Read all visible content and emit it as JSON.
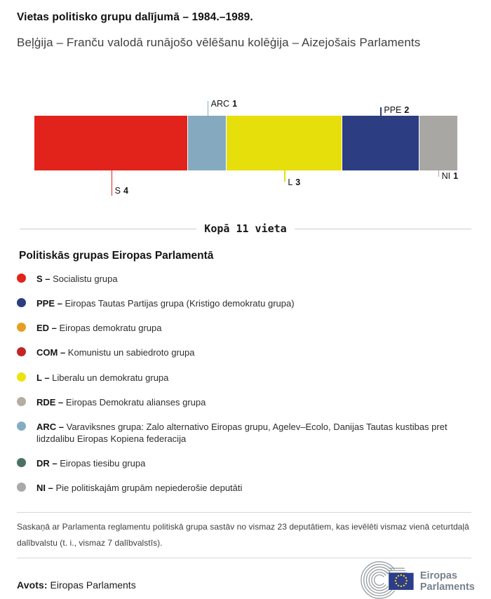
{
  "header": {
    "title": "Vietas politisko grupu dalījumā – 1984.–1989.",
    "subtitle": "Beļģija – Franču valodā runājošo vēlēšanu kolēģija – Aizejošais Parlaments"
  },
  "chart_data": {
    "type": "bar",
    "variant": "horizontal-stacked-seat-bar",
    "title": "Vietas politisko grupu dalījumā – 1984.–1989.",
    "subtitle": "Beļģija – Franču valodā runājošo vēlēšanu kolēģija – Aizejošais Parlaments",
    "total_seats": 11,
    "total_label": "Kopā 11 vieta",
    "categories": [
      "S",
      "ARC",
      "L",
      "PPE",
      "NI"
    ],
    "values": [
      4,
      1,
      3,
      2,
      1
    ],
    "segments": [
      {
        "code": "S",
        "seats": 4,
        "color": "#e2231b",
        "label_side": "below"
      },
      {
        "code": "ARC",
        "seats": 1,
        "color": "#85aabf",
        "label_side": "above"
      },
      {
        "code": "L",
        "seats": 3,
        "color": "#e6df0c",
        "label_side": "below"
      },
      {
        "code": "PPE",
        "seats": 2,
        "color": "#2c3d82",
        "label_side": "above"
      },
      {
        "code": "NI",
        "seats": 1,
        "color": "#a8a7a4",
        "label_side": "below"
      }
    ]
  },
  "legend": {
    "heading": "Politiskās grupas Eiropas Parlamentā",
    "items": [
      {
        "code": "S",
        "name": "Socialistu grupa",
        "color": "#e2231b"
      },
      {
        "code": "PPE",
        "name": "Eiropas Tautas Partijas grupa (Kristigo demokratu grupa)",
        "color": "#2c3d82"
      },
      {
        "code": "ED",
        "name": "Eiropas demokratu grupa",
        "color": "#e5a024"
      },
      {
        "code": "COM",
        "name": "Komunistu un sabiedroto grupa",
        "color": "#c22526"
      },
      {
        "code": "L",
        "name": "Liberalu un demokratu grupa",
        "color": "#ece40e"
      },
      {
        "code": "RDE",
        "name": "Eiropas Demokratu alianses grupa",
        "color": "#b5ada2"
      },
      {
        "code": "ARC",
        "name": "Varaviksnes grupa: Zalo alternativo Eiropas grupu, Agelev–Ecolo, Danijas Tautas kustibas pret lidzdalibu Eiropas Kopiena federacija",
        "color": "#85adc2"
      },
      {
        "code": "DR",
        "name": "Eiropas tiesibu grupa",
        "color": "#4d7065"
      },
      {
        "code": "NI",
        "name": "Pie politiskajām grupām nepiederošie deputāti",
        "color": "#a9a9a9"
      }
    ]
  },
  "footnote": "Saskaņā ar Parlamenta reglamentu politiskā grupa sastāv no vismaz 23 deputātiem, kas ievēlēti vismaz vienā ceturtdaļā dalībvalstu (t. i., vismaz 7 dalībvalstīs).",
  "source": {
    "label": "Avots:",
    "value": "Eiropas Parlaments"
  },
  "logo": {
    "line1": "Eiropas",
    "line2": "Parlaments"
  }
}
